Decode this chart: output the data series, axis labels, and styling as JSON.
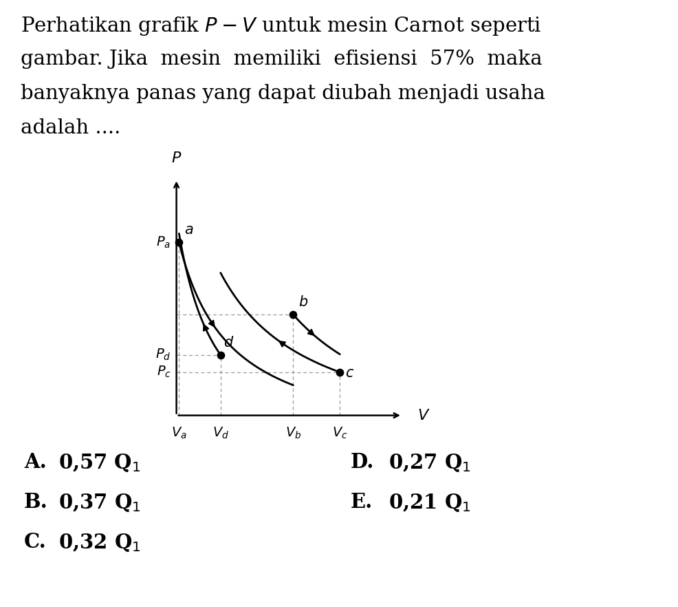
{
  "title_lines": [
    "Perhatikan grafik $P - V$ untuk mesin Carnot seperti",
    "gambar. Jika  mesin  memiliki  efisiensi  57%  maka",
    "banyaknya panas yang dapat diubah menjadi usaha",
    "adalah ...."
  ],
  "title_fontsize": 21,
  "background_color": "#ffffff",
  "text_color": "#000000",
  "choices_left": [
    [
      "A.",
      "0,57 Q",
      "1"
    ],
    [
      "B.",
      "0,37 Q",
      "1"
    ],
    [
      "C.",
      "0,32 Q",
      "1"
    ]
  ],
  "choices_right": [
    [
      "D.",
      "0,27 Q",
      "1"
    ],
    [
      "E.",
      "0,21 Q",
      "1"
    ]
  ],
  "graph": {
    "Va": 1.0,
    "Vd": 1.8,
    "Vb": 3.2,
    "Vc": 4.1,
    "Pa": 3.6,
    "Pb": 2.35,
    "Pd": 1.65,
    "Pc": 1.35,
    "xlim": [
      0.2,
      5.5
    ],
    "ylim": [
      0.5,
      4.8
    ],
    "gamma": 1.4
  }
}
